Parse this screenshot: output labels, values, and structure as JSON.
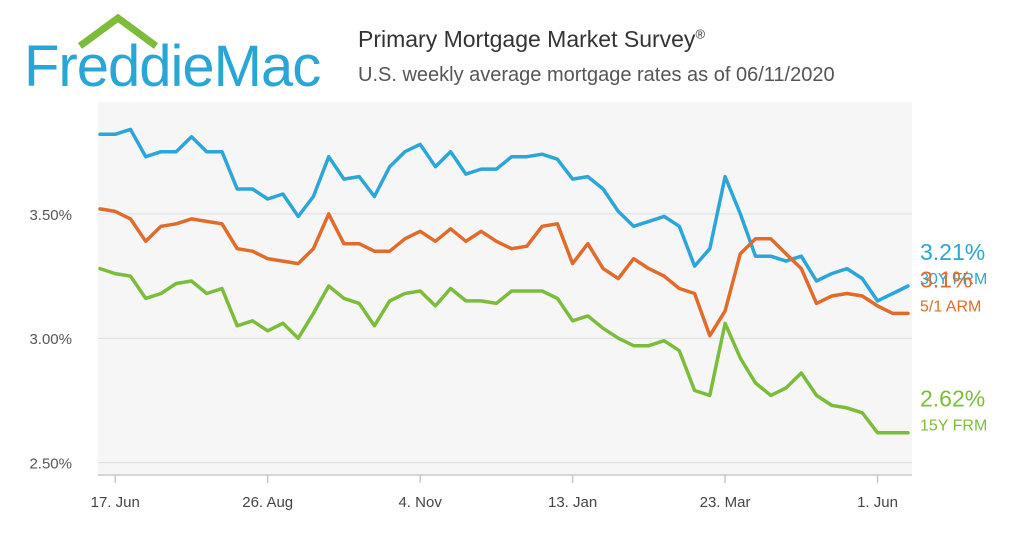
{
  "logo": {
    "text": "FreddieMac",
    "color": "#2aa6d6",
    "roof_color": "#7dbb3b"
  },
  "header": {
    "title": "Primary Mortgage Market Survey",
    "title_mark": "®",
    "subtitle": "U.S. weekly average mortgage rates as of 06/11/2020"
  },
  "chart_data": {
    "type": "line",
    "title": "Primary Mortgage Market Survey",
    "subtitle": "U.S. weekly average mortgage rates as of 06/11/2020",
    "x_ticks": [
      "17. Jun",
      "26. Aug",
      "4. Nov",
      "13. Jan",
      "23. Mar",
      "1. Jun"
    ],
    "y_ticks": [
      "2.50%",
      "3.00%",
      "3.50%"
    ],
    "ylim": [
      2.45,
      3.95
    ],
    "grid": true,
    "legend": "right, end labels",
    "series": [
      {
        "name": "30Y FRM",
        "end_label": "3.21%",
        "color": "#2aa6d9",
        "values": [
          3.82,
          3.82,
          3.84,
          3.73,
          3.75,
          3.75,
          3.81,
          3.75,
          3.75,
          3.6,
          3.6,
          3.56,
          3.58,
          3.49,
          3.57,
          3.73,
          3.64,
          3.65,
          3.57,
          3.69,
          3.75,
          3.78,
          3.69,
          3.75,
          3.66,
          3.68,
          3.68,
          3.73,
          3.73,
          3.74,
          3.72,
          3.64,
          3.65,
          3.6,
          3.51,
          3.45,
          3.47,
          3.49,
          3.45,
          3.29,
          3.36,
          3.65,
          3.5,
          3.33,
          3.33,
          3.31,
          3.33,
          3.23,
          3.26,
          3.28,
          3.24,
          3.15,
          3.18,
          3.21
        ]
      },
      {
        "name": "5/1 ARM",
        "end_label": "3.1%",
        "color": "#e06b2b",
        "values": [
          3.52,
          3.51,
          3.48,
          3.39,
          3.45,
          3.46,
          3.48,
          3.47,
          3.46,
          3.36,
          3.35,
          3.32,
          3.31,
          3.3,
          3.36,
          3.5,
          3.38,
          3.38,
          3.35,
          3.35,
          3.4,
          3.43,
          3.39,
          3.44,
          3.39,
          3.43,
          3.39,
          3.36,
          3.37,
          3.45,
          3.46,
          3.3,
          3.38,
          3.28,
          3.24,
          3.32,
          3.28,
          3.25,
          3.2,
          3.18,
          3.01,
          3.11,
          3.34,
          3.4,
          3.4,
          3.34,
          3.28,
          3.14,
          3.17,
          3.18,
          3.17,
          3.13,
          3.1,
          3.1
        ]
      },
      {
        "name": "15Y FRM",
        "end_label": "2.62%",
        "color": "#7bbd3a",
        "values": [
          3.28,
          3.26,
          3.25,
          3.16,
          3.18,
          3.22,
          3.23,
          3.18,
          3.2,
          3.05,
          3.07,
          3.03,
          3.06,
          3.0,
          3.1,
          3.21,
          3.16,
          3.14,
          3.05,
          3.15,
          3.18,
          3.19,
          3.13,
          3.2,
          3.15,
          3.15,
          3.14,
          3.19,
          3.19,
          3.19,
          3.16,
          3.07,
          3.09,
          3.04,
          3.0,
          2.97,
          2.97,
          2.99,
          2.95,
          2.79,
          2.77,
          3.06,
          2.92,
          2.82,
          2.77,
          2.8,
          2.86,
          2.77,
          2.73,
          2.72,
          2.7,
          2.62,
          2.62,
          2.62
        ]
      }
    ]
  }
}
